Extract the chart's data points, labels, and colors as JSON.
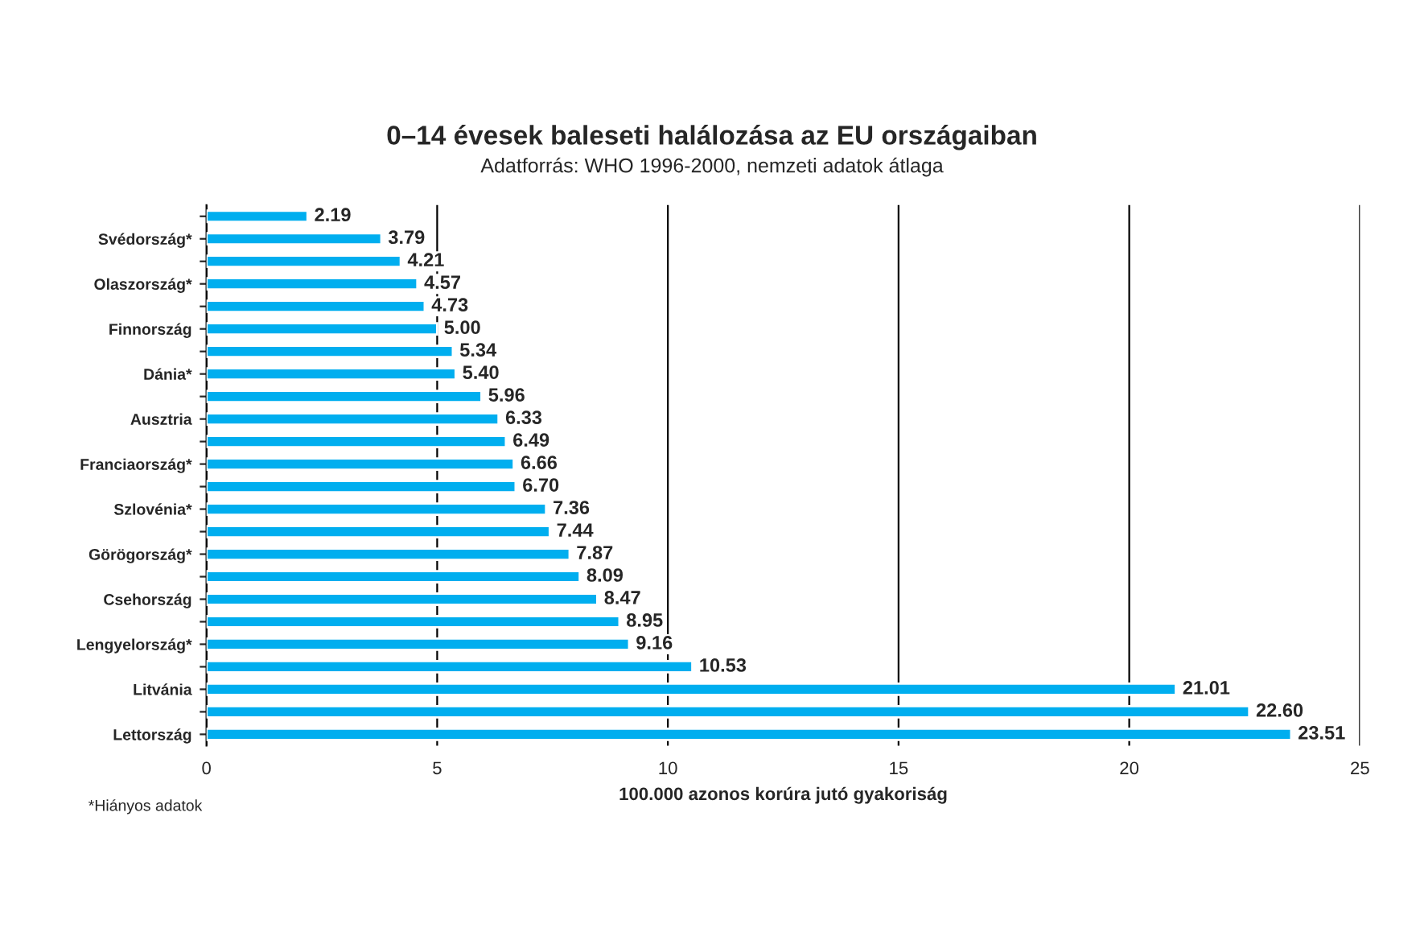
{
  "chart_data": {
    "type": "bar",
    "orientation": "horizontal",
    "title": "0–14 évesek baleseti halálozása az EU országaiban",
    "subtitle": "Adatforrás: WHO 1996-2000, nemzeti adatok átlaga",
    "xlabel": "100.000 azonos korúra jutó gyakoriság",
    "annotations": [
      "*Hiányos adatok"
    ],
    "categories": [
      null,
      "Svédország*",
      null,
      "Olaszország*",
      null,
      "Finnország",
      null,
      "Dánia*",
      null,
      "Ausztria",
      null,
      "Franciaország*",
      null,
      "Szlovénia*",
      null,
      "Görögország*",
      null,
      "Csehország",
      null,
      "Lengyelország*",
      null,
      "Litvánia",
      null,
      "Lettország"
    ],
    "values": [
      2.19,
      3.79,
      4.21,
      4.57,
      4.73,
      5.0,
      5.34,
      5.4,
      5.96,
      6.33,
      6.49,
      6.66,
      6.7,
      7.36,
      7.44,
      7.87,
      8.09,
      8.47,
      8.95,
      9.16,
      10.53,
      21.01,
      22.6,
      23.51
    ],
    "value_labels": [
      "2.19",
      "3.79",
      "4.21",
      "4.57",
      "4.73",
      "5.00",
      "5.34",
      "5.40",
      "5.96",
      "6.33",
      "6.49",
      "6.66",
      "6.70",
      "7.36",
      "7.44",
      "7.87",
      "8.09",
      "8.47",
      "8.95",
      "9.16",
      "10.53",
      "21.01",
      "22.60",
      "23.51"
    ],
    "color": "#00aeef",
    "xlim": [
      0,
      25
    ],
    "xticks": [
      0,
      5,
      10,
      15,
      20,
      25
    ],
    "grid": "x",
    "legend": false
  }
}
